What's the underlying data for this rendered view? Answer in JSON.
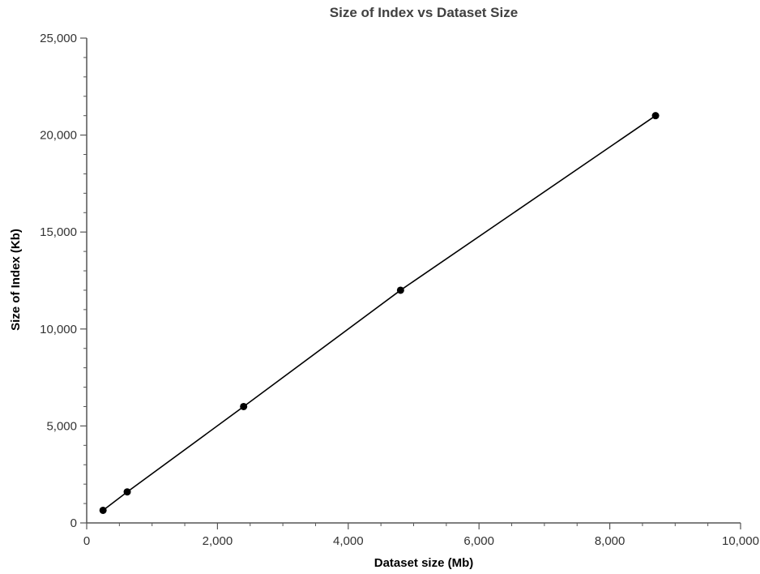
{
  "chart_data": {
    "type": "line",
    "title": "Size of Index vs Dataset Size",
    "xlabel": "Dataset size (Mb)",
    "ylabel": "Size of Index (Kb)",
    "xlim": [
      0,
      10000
    ],
    "ylim": [
      0,
      25000
    ],
    "x_ticks": [
      0,
      2000,
      4000,
      6000,
      8000,
      10000
    ],
    "x_tick_labels": [
      "0",
      "2,000",
      "4,000",
      "6,000",
      "8,000",
      "10,000"
    ],
    "y_ticks": [
      0,
      5000,
      10000,
      15000,
      20000,
      25000
    ],
    "y_tick_labels": [
      "0",
      "5,000",
      "10,000",
      "15,000",
      "20,000",
      "25,000"
    ],
    "x_minor_step": 500,
    "y_minor_step": 1000,
    "grid": false,
    "series": [
      {
        "x": [
          250,
          620,
          2400,
          4800,
          8700
        ],
        "y": [
          650,
          1600,
          6000,
          12000,
          21000
        ],
        "color": "#000000"
      }
    ]
  }
}
